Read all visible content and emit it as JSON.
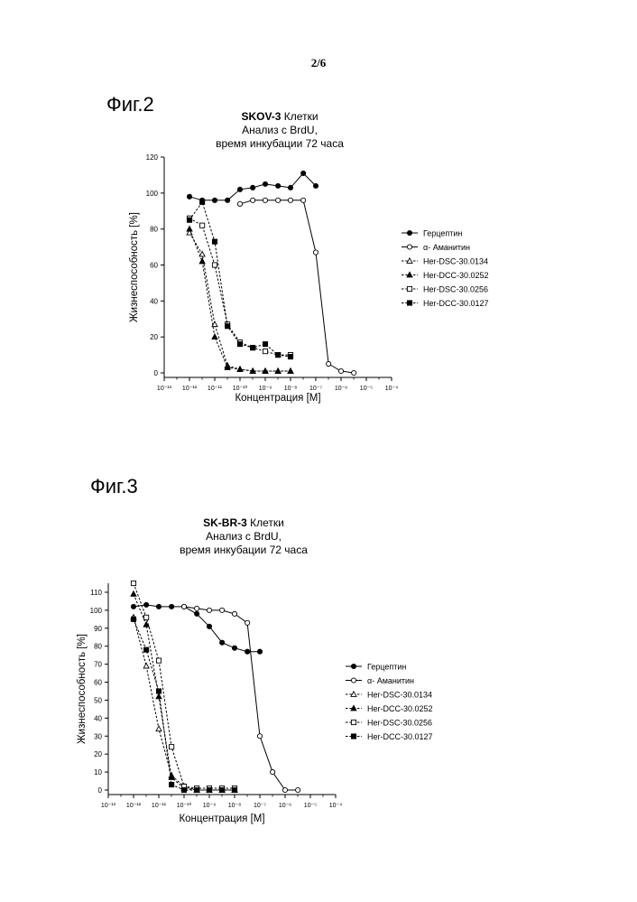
{
  "page": {
    "number": "2/6"
  },
  "figures": [
    {
      "label": "Фиг.2",
      "title_bold": "SKOV-3",
      "title_rest": " Клетки",
      "title_line2": "Анализ с BrdU,",
      "title_line3": "время инкубации 72 часа"
    },
    {
      "label": "Фиг.3",
      "title_bold": "SK-BR-3",
      "title_rest": " Клетки",
      "title_line2": "Анализ с BrdU,",
      "title_line3": "время инкубации 72 часа"
    }
  ],
  "chart_data": [
    {
      "type": "line",
      "title": "SKOV-3 Клетки Анализ с BrdU, время инкубации 72 часа",
      "xlabel": "Концентрация [M]",
      "ylabel": "Жизнеспособность [%]",
      "x_scale": "log",
      "xlim": [
        1e-13,
        0.0001
      ],
      "ylim": [
        0,
        120
      ],
      "x_ticks": [
        "10⁻¹³",
        "10⁻¹²",
        "10⁻¹¹",
        "10⁻¹⁰",
        "10⁻⁹",
        "10⁻⁸",
        "10⁻⁷",
        "10⁻⁶",
        "10⁻⁵",
        "10⁻⁴"
      ],
      "y_ticks": [
        0,
        20,
        40,
        60,
        80,
        100,
        120
      ],
      "legend_position": "right",
      "series": [
        {
          "name": "Герцептин",
          "marker": "filled-circle",
          "line": "solid",
          "x": [
            1e-12,
            3.2e-12,
            1e-11,
            3.2e-11,
            1e-10,
            3.2e-10,
            1e-09,
            3.2e-09,
            1e-08,
            3.2e-08,
            1e-07
          ],
          "y": [
            98,
            96,
            96,
            96,
            102,
            103,
            105,
            104,
            103,
            111,
            104
          ]
        },
        {
          "name": "α- Аманитин",
          "marker": "open-circle",
          "line": "solid",
          "x": [
            1e-10,
            3.2e-10,
            1e-09,
            3.2e-09,
            1e-08,
            3.2e-08,
            1e-07,
            3.2e-07,
            1e-06,
            3.2e-06
          ],
          "y": [
            94,
            96,
            96,
            96,
            96,
            96,
            67,
            5,
            1,
            0
          ]
        },
        {
          "name": "Her-DSC-30.0134",
          "marker": "open-triangle",
          "line": "dashed",
          "x": [
            1e-12,
            3.2e-12,
            1e-11,
            3.2e-11,
            1e-10,
            3.2e-10,
            1e-09,
            3.2e-09,
            1e-08
          ],
          "y": [
            78,
            66,
            27,
            4,
            2,
            1,
            1,
            1,
            1
          ]
        },
        {
          "name": "Her-DCC-30.0252",
          "marker": "filled-triangle",
          "line": "dashed",
          "x": [
            1e-12,
            3.2e-12,
            1e-11,
            3.2e-11,
            1e-10,
            3.2e-10,
            1e-09,
            3.2e-09,
            1e-08
          ],
          "y": [
            80,
            62,
            20,
            3,
            2,
            1,
            1,
            1,
            1
          ]
        },
        {
          "name": "Her-DSC-30.0256",
          "marker": "open-square",
          "line": "dashed",
          "x": [
            1e-12,
            3.2e-12,
            1e-11,
            3.2e-11,
            1e-10,
            3.2e-10,
            1e-09,
            3.2e-09,
            1e-08
          ],
          "y": [
            86,
            82,
            60,
            27,
            17,
            14,
            12,
            10,
            10
          ]
        },
        {
          "name": "Her-DCC-30.0127",
          "marker": "filled-square",
          "line": "dashed",
          "x": [
            1e-12,
            3.2e-12,
            1e-11,
            3.2e-11,
            1e-10,
            3.2e-10,
            1e-09,
            3.2e-09,
            1e-08
          ],
          "y": [
            85,
            95,
            73,
            26,
            16,
            14,
            16,
            10,
            9
          ]
        }
      ]
    },
    {
      "type": "line",
      "title": "SK-BR-3 Клетки Анализ с BrdU, время инкубации 72 часа",
      "xlabel": "Концентрация [M]",
      "ylabel": "Жизнеспособность [%]",
      "x_scale": "log",
      "xlim": [
        1e-13,
        0.0001
      ],
      "ylim": [
        0,
        115
      ],
      "x_ticks": [
        "10⁻¹³",
        "10⁻¹²",
        "10⁻¹¹",
        "10⁻¹⁰",
        "10⁻⁹",
        "10⁻⁸",
        "10⁻⁷",
        "10⁻⁶",
        "10⁻⁵",
        "10⁻⁴"
      ],
      "y_ticks": [
        0,
        10,
        20,
        30,
        40,
        50,
        60,
        70,
        80,
        90,
        100,
        110
      ],
      "legend_position": "right",
      "series": [
        {
          "name": "Герцептин",
          "marker": "filled-circle",
          "line": "solid",
          "x": [
            1e-12,
            3.2e-12,
            1e-11,
            3.2e-11,
            1e-10,
            3.2e-10,
            1e-09,
            3.2e-09,
            1e-08,
            3.2e-08,
            1e-07
          ],
          "y": [
            102,
            103,
            102,
            102,
            102,
            98,
            91,
            82,
            79,
            77,
            77
          ]
        },
        {
          "name": "α- Аманитин",
          "marker": "open-circle",
          "line": "solid",
          "x": [
            1e-10,
            3.2e-10,
            1e-09,
            3.2e-09,
            1e-08,
            3.2e-08,
            1e-07,
            3.2e-07,
            1e-06,
            3.2e-06
          ],
          "y": [
            102,
            101,
            100,
            100,
            98,
            93,
            30,
            10,
            0,
            0
          ]
        },
        {
          "name": "Her-DSC-30.0134",
          "marker": "open-triangle",
          "line": "dashed",
          "x": [
            1e-12,
            3.2e-12,
            1e-11,
            3.2e-11,
            1e-10,
            3.2e-10,
            1e-09,
            3.2e-09,
            1e-08
          ],
          "y": [
            96,
            69,
            34,
            8,
            2,
            0,
            0,
            0,
            0
          ]
        },
        {
          "name": "Her-DCC-30.0252",
          "marker": "filled-triangle",
          "line": "dashed",
          "x": [
            1e-12,
            3.2e-12,
            1e-11,
            3.2e-11,
            1e-10,
            3.2e-10,
            1e-09,
            3.2e-09,
            1e-08
          ],
          "y": [
            109,
            92,
            52,
            7,
            1,
            0,
            0,
            0,
            0
          ]
        },
        {
          "name": "Her-DSC-30.0256",
          "marker": "open-square",
          "line": "dashed",
          "x": [
            1e-12,
            3.2e-12,
            1e-11,
            3.2e-11,
            1e-10,
            3.2e-10,
            1e-09,
            3.2e-09,
            1e-08
          ],
          "y": [
            115,
            96,
            72,
            24,
            2,
            1,
            1,
            1,
            1
          ]
        },
        {
          "name": "Her-DCC-30.0127",
          "marker": "filled-square",
          "line": "dashed",
          "x": [
            1e-12,
            3.2e-12,
            1e-11,
            3.2e-11,
            1e-10,
            3.2e-10,
            1e-09,
            3.2e-09,
            1e-08
          ],
          "y": [
            95,
            78,
            55,
            3,
            0,
            0,
            0,
            0,
            0
          ]
        }
      ]
    }
  ]
}
